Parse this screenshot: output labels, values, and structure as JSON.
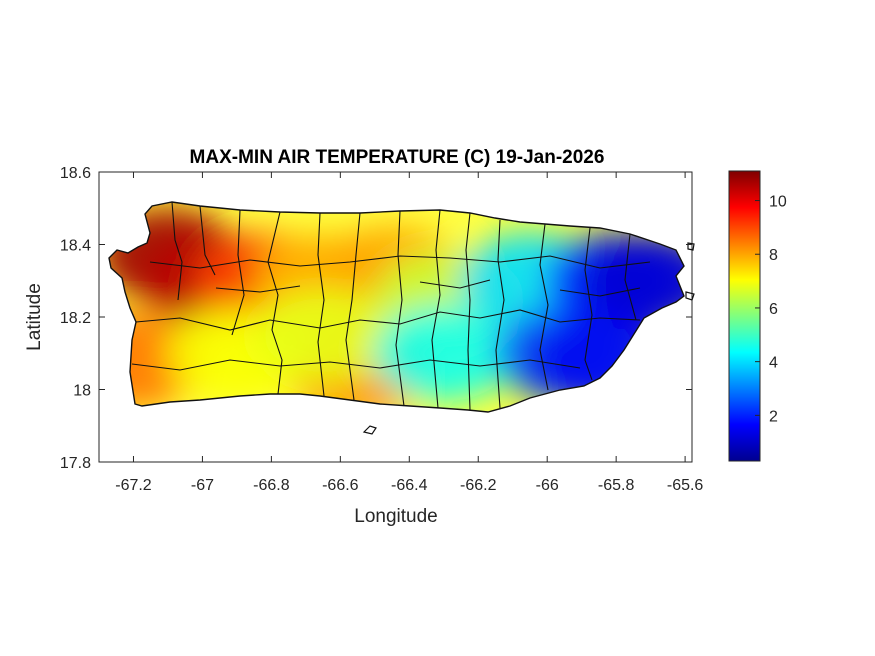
{
  "chart_data": {
    "type": "heatmap",
    "title": "MAX-MIN AIR TEMPERATURE (C) 19-Jan-2026",
    "xlabel": "Longitude",
    "ylabel": "Latitude",
    "xlim": [
      -67.3,
      -65.58
    ],
    "ylim": [
      17.8,
      18.6
    ],
    "xticks": [
      -67.2,
      -67,
      -66.8,
      -66.6,
      -66.4,
      -66.2,
      -66,
      -65.8,
      -65.6
    ],
    "yticks": [
      17.8,
      18,
      18.2,
      18.4,
      18.6
    ],
    "xtick_labels": [
      "-67.2",
      "-67",
      "-66.8",
      "-66.6",
      "-66.4",
      "-66.2",
      "-66",
      "-65.8",
      "-65.6"
    ],
    "ytick_labels": [
      "17.8",
      "18",
      "18.2",
      "18.4",
      "18.6"
    ],
    "colorbar": {
      "colormap": "jet",
      "range": [
        0.3,
        11.1
      ],
      "ticks": [
        2,
        4,
        6,
        8,
        10
      ],
      "tick_labels": [
        "2",
        "4",
        "6",
        "8",
        "10"
      ]
    },
    "region_values": [
      {
        "lon": -67.1,
        "lat": 18.37,
        "value": 10.8
      },
      {
        "lon": -66.97,
        "lat": 18.3,
        "value": 10.5
      },
      {
        "lon": -66.82,
        "lat": 18.3,
        "value": 9.0
      },
      {
        "lon": -67.2,
        "lat": 18.08,
        "value": 8.5
      },
      {
        "lon": -66.55,
        "lat": 18.05,
        "value": 8.2
      },
      {
        "lon": -66.65,
        "lat": 18.3,
        "value": 7.8
      },
      {
        "lon": -66.45,
        "lat": 18.32,
        "value": 8.0
      },
      {
        "lon": -66.9,
        "lat": 18.1,
        "value": 7.0
      },
      {
        "lon": -66.65,
        "lat": 18.15,
        "value": 6.8
      },
      {
        "lon": -66.3,
        "lat": 18.25,
        "value": 6.5
      },
      {
        "lon": -66.3,
        "lat": 18.1,
        "value": 4.5
      },
      {
        "lon": -66.05,
        "lat": 18.3,
        "value": 4.0
      },
      {
        "lon": -65.95,
        "lat": 18.1,
        "value": 2.5
      },
      {
        "lon": -65.8,
        "lat": 18.3,
        "value": 2.0
      },
      {
        "lon": -65.7,
        "lat": 18.3,
        "value": 1.2
      },
      {
        "lon": -65.85,
        "lat": 18.08,
        "value": 1.5
      }
    ]
  }
}
